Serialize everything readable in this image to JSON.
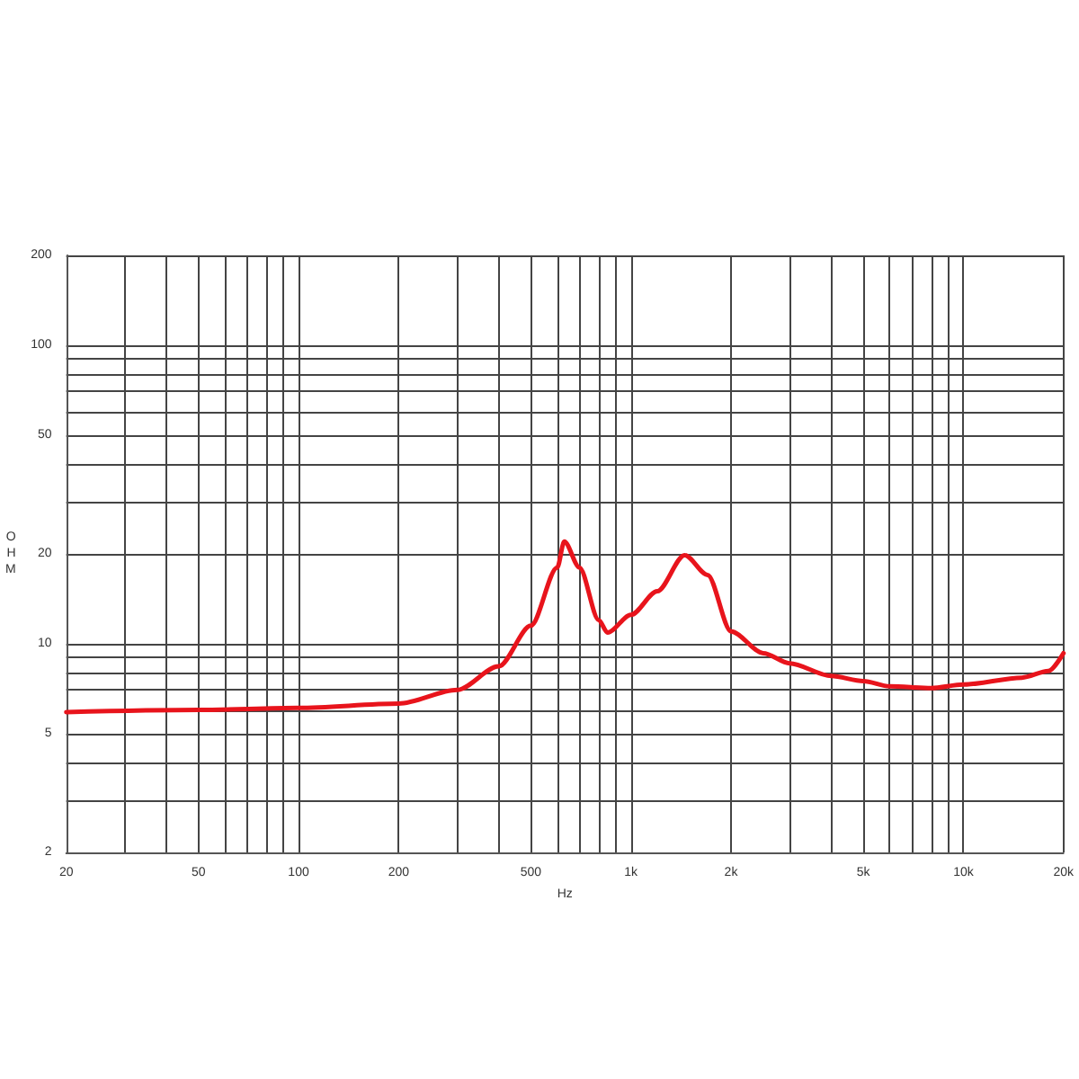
{
  "chart_data": {
    "type": "line",
    "xlabel": "Hz",
    "ylabel": "OHM",
    "log": "xy",
    "grid": true,
    "marker": "none",
    "line_style": "solid",
    "x": [
      20,
      50,
      100,
      200,
      300,
      400,
      500,
      600,
      630,
      700,
      800,
      850,
      1000,
      1200,
      1450,
      1700,
      2000,
      2500,
      3000,
      4000,
      5000,
      6000,
      8000,
      10000,
      15000,
      18000,
      20000
    ],
    "series": [
      {
        "color": "#e8141c",
        "values": [
          5.9,
          6.0,
          6.1,
          6.3,
          7.0,
          8.4,
          11.5,
          18,
          22,
          18,
          12,
          10.9,
          12.5,
          15,
          19.8,
          17,
          11,
          9.3,
          8.6,
          7.8,
          7.5,
          7.2,
          7.1,
          7.3,
          7.7,
          8.1,
          9.3
        ]
      }
    ],
    "xlim": [
      20,
      20000
    ],
    "ylim": [
      2,
      200
    ],
    "xticks": [
      20,
      {
        "value": 30,
        "label": null
      },
      {
        "value": 40,
        "label": null
      },
      50,
      {
        "value": 60,
        "label": null
      },
      {
        "value": 70,
        "label": null
      },
      {
        "value": 80,
        "label": null
      },
      {
        "value": 90,
        "label": null
      },
      100,
      200,
      {
        "value": 300,
        "label": null
      },
      {
        "value": 400,
        "label": null
      },
      500,
      {
        "value": 600,
        "label": null
      },
      {
        "value": 700,
        "label": null
      },
      {
        "value": 800,
        "label": null
      },
      {
        "value": 900,
        "label": null
      },
      {
        "value": 1000,
        "label": "1k"
      },
      {
        "value": 2000,
        "label": "2k"
      },
      {
        "value": 3000,
        "label": null
      },
      {
        "value": 4000,
        "label": null
      },
      {
        "value": 5000,
        "label": "5k"
      },
      {
        "value": 6000,
        "label": null
      },
      {
        "value": 7000,
        "label": null
      },
      {
        "value": 8000,
        "label": null
      },
      {
        "value": 9000,
        "label": null
      },
      {
        "value": 10000,
        "label": "10k"
      },
      {
        "value": 20000,
        "label": "20k"
      }
    ],
    "yticks": [
      2,
      {
        "value": 3,
        "label": null
      },
      {
        "value": 4,
        "label": null
      },
      5,
      {
        "value": 6,
        "label": null
      },
      {
        "value": 7,
        "label": null
      },
      {
        "value": 8,
        "label": null
      },
      {
        "value": 9,
        "label": null
      },
      10,
      20,
      {
        "value": 30,
        "label": null
      },
      {
        "value": 40,
        "label": null
      },
      50,
      {
        "value": 60,
        "label": null
      },
      {
        "value": 70,
        "label": null
      },
      {
        "value": 80,
        "label": null
      },
      {
        "value": 90,
        "label": null
      },
      100,
      200
    ]
  }
}
